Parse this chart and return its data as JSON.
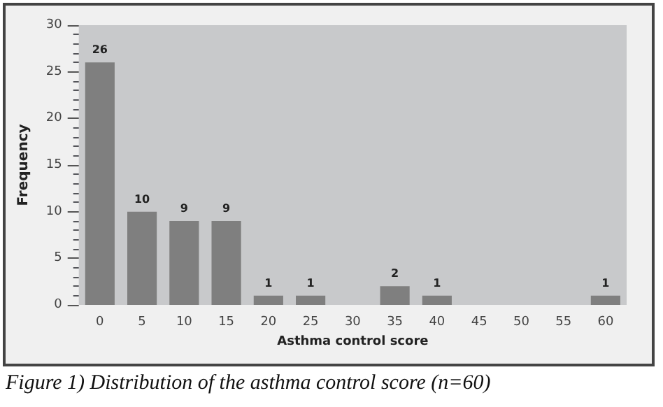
{
  "chart_data": {
    "type": "bar",
    "xlabel": "Asthma control score",
    "ylabel": "Frequency",
    "categories": [
      "0",
      "5",
      "10",
      "15",
      "20",
      "25",
      "30",
      "35",
      "40",
      "45",
      "50",
      "55",
      "60"
    ],
    "values": [
      26,
      10,
      9,
      9,
      1,
      1,
      0,
      2,
      1,
      0,
      0,
      0,
      1
    ],
    "value_labels": [
      "26",
      "10",
      "9",
      "9",
      "1",
      "1",
      null,
      "2",
      "1",
      null,
      null,
      null,
      "1"
    ],
    "color": "#7f7f7f",
    "ylim": [
      0,
      30
    ],
    "yticks": [
      0,
      5,
      10,
      15,
      20,
      25,
      30
    ],
    "grid": false,
    "annotations": [
      "Figure 1) Distribution of the asthma control score (n=60)"
    ]
  }
}
